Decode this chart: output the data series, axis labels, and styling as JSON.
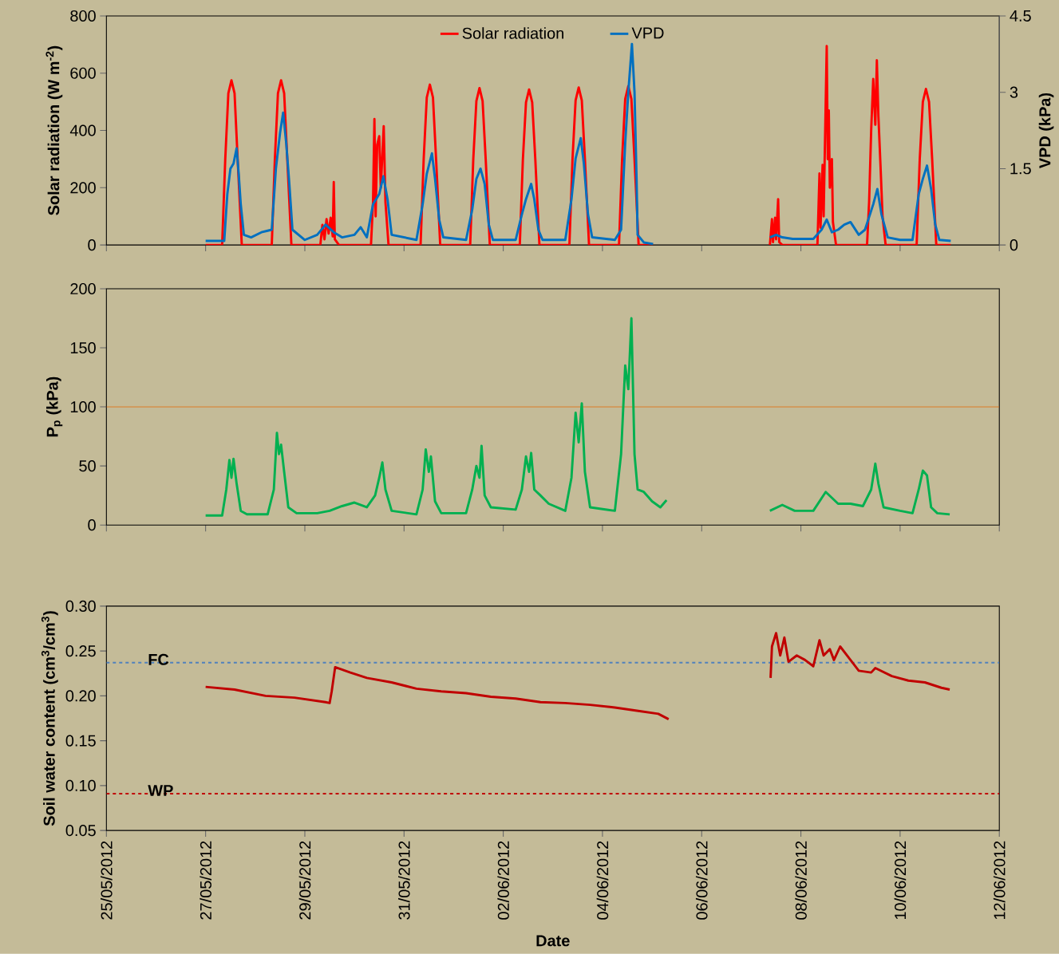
{
  "chart_data": [
    {
      "type": "line",
      "ylabel": "Solar radiation (W m$^{-2}$)",
      "y2label": "VPD (kPa)",
      "legend": "top",
      "tick_labels": "y",
      "xlim": [
        "2012-05-25",
        "2012-06-12"
      ],
      "xticks": [
        {
          "value": "2012-05-25",
          "label": null
        },
        {
          "value": "2012-05-27",
          "label": null
        },
        {
          "value": "2012-05-29",
          "label": null
        },
        {
          "value": "2012-05-31",
          "label": null
        },
        {
          "value": "2012-06-02",
          "label": null
        },
        {
          "value": "2012-06-04",
          "label": null
        },
        {
          "value": "2012-06-06",
          "label": null
        },
        {
          "value": "2012-06-08",
          "label": null
        },
        {
          "value": "2012-06-10",
          "label": null
        },
        {
          "value": "2012-06-12",
          "label": null
        }
      ],
      "ylim": [
        0,
        800
      ],
      "yticks": [
        0,
        200,
        400,
        600,
        800
      ],
      "y2lim": [
        0,
        4.5
      ],
      "y2ticks": [
        0,
        1.5,
        3,
        4.5
      ],
      "series": [
        {
          "name": "Solar radiation",
          "color": "#ff0000",
          "x": [
            "2012-05-27T00:00",
            "2012-05-27T08:00",
            "2012-05-27T09:30",
            "2012-05-27T11:00",
            "2012-05-27T12:30",
            "2012-05-27T14:00",
            "2012-05-27T15:30",
            "2012-05-27T17:30",
            "2012-05-28T08:00",
            "2012-05-28T09:30",
            "2012-05-28T11:00",
            "2012-05-28T12:30",
            "2012-05-28T14:00",
            "2012-05-28T15:30",
            "2012-05-28T17:30",
            "2012-05-29T07:30",
            "2012-05-29T08:30",
            "2012-05-29T09:30",
            "2012-05-29T10:30",
            "2012-05-29T11:30",
            "2012-05-29T12:30",
            "2012-05-29T13:30",
            "2012-05-29T14:00",
            "2012-05-29T14:30",
            "2012-05-29T16:30",
            "2012-05-30T08:00",
            "2012-05-30T09:00",
            "2012-05-30T09:40",
            "2012-05-30T10:15",
            "2012-05-30T11:00",
            "2012-05-30T12:00",
            "2012-05-30T12:45",
            "2012-05-30T14:10",
            "2012-05-30T15:00",
            "2012-05-30T16:30",
            "2012-05-31T08:00",
            "2012-05-31T09:30",
            "2012-05-31T11:00",
            "2012-05-31T12:30",
            "2012-05-31T14:00",
            "2012-05-31T15:30",
            "2012-05-31T17:30",
            "2012-06-01T08:00",
            "2012-06-01T09:30",
            "2012-06-01T11:00",
            "2012-06-01T12:30",
            "2012-06-01T14:00",
            "2012-06-01T15:30",
            "2012-06-01T17:30",
            "2012-06-02T08:00",
            "2012-06-02T09:30",
            "2012-06-02T11:00",
            "2012-06-02T12:30",
            "2012-06-02T14:00",
            "2012-06-02T15:30",
            "2012-06-02T17:30",
            "2012-06-03T08:00",
            "2012-06-03T09:30",
            "2012-06-03T11:00",
            "2012-06-03T12:30",
            "2012-06-03T14:00",
            "2012-06-03T15:30",
            "2012-06-03T17:30",
            "2012-06-04T08:00",
            "2012-06-04T09:30",
            "2012-06-04T11:00",
            "2012-06-04T12:30",
            "2012-06-04T14:00",
            "2012-06-04T15:30",
            "2012-06-04T17:30",
            "2012-06-05T00:30",
            "2012-06-06T00:00",
            "2012-06-07T09:00",
            "2012-06-07T10:00",
            "2012-06-07T10:30",
            "2012-06-07T11:30",
            "2012-06-07T12:00",
            "2012-06-07T13:00",
            "2012-06-07T13:30",
            "2012-06-07T15:00",
            "2012-06-08T08:00",
            "2012-06-08T09:00",
            "2012-06-08T09:30",
            "2012-06-08T10:30",
            "2012-06-08T11:00",
            "2012-06-08T12:30",
            "2012-06-08T13:00",
            "2012-06-08T13:30",
            "2012-06-08T14:00",
            "2012-06-08T15:00",
            "2012-06-08T15:30",
            "2012-06-08T17:00",
            "2012-06-09T08:00",
            "2012-06-09T09:00",
            "2012-06-09T10:00",
            "2012-06-09T11:00",
            "2012-06-09T12:00",
            "2012-06-09T12:45",
            "2012-06-09T13:30",
            "2012-06-09T14:30",
            "2012-06-09T15:30",
            "2012-06-09T17:00",
            "2012-06-10T08:00",
            "2012-06-10T09:30",
            "2012-06-10T11:00",
            "2012-06-10T12:30",
            "2012-06-10T14:00",
            "2012-06-10T15:30",
            "2012-06-10T17:30",
            "2012-06-11T00:30"
          ],
          "values": [
            0,
            0,
            300,
            530,
            575,
            530,
            300,
            0,
            0,
            300,
            530,
            575,
            530,
            300,
            0,
            0,
            70,
            20,
            90,
            40,
            95,
            30,
            220,
            20,
            0,
            0,
            150,
            440,
            100,
            350,
            380,
            200,
            415,
            150,
            0,
            0,
            300,
            515,
            560,
            515,
            300,
            0,
            0,
            300,
            503,
            548,
            503,
            300,
            0,
            0,
            300,
            498,
            543,
            498,
            300,
            0,
            0,
            300,
            505,
            550,
            505,
            300,
            0,
            0,
            300,
            510,
            555,
            510,
            300,
            0,
            0,
            null,
            0,
            90,
            10,
            95,
            20,
            160,
            10,
            0,
            0,
            250,
            60,
            280,
            100,
            695,
            300,
            470,
            200,
            300,
            80,
            0,
            0,
            150,
            400,
            580,
            420,
            645,
            450,
            280,
            100,
            0,
            0,
            300,
            500,
            545,
            500,
            300,
            0,
            0
          ]
        },
        {
          "name": "VPD",
          "color": "#0070c0",
          "axis": "y2",
          "x": [
            "2012-05-27T00:00",
            "2012-05-27T09:00",
            "2012-05-27T10:30",
            "2012-05-27T12:00",
            "2012-05-27T13:30",
            "2012-05-27T15:00",
            "2012-05-27T16:00",
            "2012-05-27T17:00",
            "2012-05-27T18:30",
            "2012-05-27T22:00",
            "2012-05-28T03:00",
            "2012-05-28T06:00",
            "2012-05-28T08:00",
            "2012-05-28T10:00",
            "2012-05-28T12:00",
            "2012-05-28T13:30",
            "2012-05-28T15:00",
            "2012-05-28T16:30",
            "2012-05-28T18:00",
            "2012-05-29T00:00",
            "2012-05-29T06:00",
            "2012-05-29T10:00",
            "2012-05-29T14:00",
            "2012-05-29T18:00",
            "2012-05-30T00:00",
            "2012-05-30T03:00",
            "2012-05-30T06:00",
            "2012-05-30T09:00",
            "2012-05-30T12:00",
            "2012-05-30T14:00",
            "2012-05-30T16:00",
            "2012-05-30T18:00",
            "2012-05-31T06:00",
            "2012-05-31T09:00",
            "2012-05-31T11:00",
            "2012-05-31T13:30",
            "2012-05-31T15:00",
            "2012-05-31T17:00",
            "2012-05-31T19:00",
            "2012-06-01T06:00",
            "2012-06-01T09:00",
            "2012-06-01T11:00",
            "2012-06-01T13:00",
            "2012-06-01T15:00",
            "2012-06-01T17:00",
            "2012-06-01T19:00",
            "2012-06-02T06:00",
            "2012-06-02T09:00",
            "2012-06-02T11:00",
            "2012-06-02T13:30",
            "2012-06-02T15:00",
            "2012-06-02T17:00",
            "2012-06-02T19:00",
            "2012-06-03T06:00",
            "2012-06-03T09:00",
            "2012-06-03T11:00",
            "2012-06-03T13:30",
            "2012-06-03T15:00",
            "2012-06-03T17:00",
            "2012-06-03T19:00",
            "2012-06-04T06:00",
            "2012-06-04T09:00",
            "2012-06-04T11:00",
            "2012-06-04T12:30",
            "2012-06-04T14:15",
            "2012-06-04T15:30",
            "2012-06-04T16:30",
            "2012-06-04T17:00",
            "2012-06-04T20:00",
            "2012-06-05T00:30",
            "2012-06-06T00:00",
            "2012-06-07T09:00",
            "2012-06-07T12:00",
            "2012-06-07T15:00",
            "2012-06-07T20:00",
            "2012-06-08T06:00",
            "2012-06-08T10:00",
            "2012-06-08T12:30",
            "2012-06-08T15:00",
            "2012-06-08T18:00",
            "2012-06-08T21:00",
            "2012-06-09T00:00",
            "2012-06-09T04:00",
            "2012-06-09T07:00",
            "2012-06-09T11:00",
            "2012-06-09T13:00",
            "2012-06-09T15:00",
            "2012-06-09T18:00",
            "2012-06-10T00:00",
            "2012-06-10T06:00",
            "2012-06-10T09:00",
            "2012-06-10T11:00",
            "2012-06-10T13:00",
            "2012-06-10T15:00",
            "2012-06-10T17:00",
            "2012-06-10T19:00",
            "2012-06-11T00:30"
          ],
          "values": [
            0.08,
            0.08,
            1.0,
            1.5,
            1.6,
            1.9,
            1.4,
            0.8,
            0.2,
            0.15,
            0.25,
            0.28,
            0.3,
            1.5,
            2.2,
            2.6,
            2.0,
            1.2,
            0.3,
            0.1,
            0.2,
            0.4,
            0.25,
            0.15,
            0.2,
            0.35,
            0.15,
            0.8,
            1.0,
            1.35,
            0.9,
            0.2,
            0.1,
            0.8,
            1.4,
            1.8,
            1.3,
            0.5,
            0.15,
            0.1,
            0.7,
            1.3,
            1.5,
            1.2,
            0.4,
            0.1,
            0.1,
            0.6,
            0.9,
            1.2,
            0.9,
            0.3,
            0.1,
            0.1,
            0.9,
            1.7,
            2.1,
            1.6,
            0.6,
            0.15,
            0.1,
            0.3,
            2.0,
            3.0,
            3.95,
            3.0,
            1.3,
            0.2,
            0.05,
            0.02,
            null,
            0.15,
            0.2,
            0.15,
            0.12,
            0.12,
            0.3,
            0.5,
            0.25,
            0.3,
            0.4,
            0.45,
            0.2,
            0.3,
            0.8,
            1.1,
            0.6,
            0.15,
            0.1,
            0.1,
            1.0,
            1.3,
            1.56,
            1.1,
            0.4,
            0.1,
            0.08
          ]
        }
      ]
    },
    {
      "type": "line",
      "ylabel": "P$_{p}$ (kPa)",
      "tick_labels": "y",
      "xlim": [
        "2012-05-25",
        "2012-06-12"
      ],
      "xticks": [
        {
          "value": "2012-05-25",
          "label": null
        },
        {
          "value": "2012-05-27",
          "label": null
        },
        {
          "value": "2012-05-29",
          "label": null
        },
        {
          "value": "2012-05-31",
          "label": null
        },
        {
          "value": "2012-06-02",
          "label": null
        },
        {
          "value": "2012-06-04",
          "label": null
        },
        {
          "value": "2012-06-06",
          "label": null
        },
        {
          "value": "2012-06-08",
          "label": null
        },
        {
          "value": "2012-06-10",
          "label": null
        },
        {
          "value": "2012-06-12",
          "label": null
        }
      ],
      "ylim": [
        0,
        200
      ],
      "yticks": [
        0,
        50,
        100,
        150,
        200
      ],
      "ref_lines": [
        {
          "axis": "y",
          "value": 100,
          "color": "#e46c0a"
        }
      ],
      "series": [
        {
          "color": "#00b050",
          "x": [
            "2012-05-27T00:00",
            "2012-05-27T08:00",
            "2012-05-27T10:00",
            "2012-05-27T11:30",
            "2012-05-27T12:30",
            "2012-05-27T13:30",
            "2012-05-27T15:00",
            "2012-05-27T17:00",
            "2012-05-27T20:00",
            "2012-05-28T06:00",
            "2012-05-28T09:00",
            "2012-05-28T10:30",
            "2012-05-28T11:30",
            "2012-05-28T12:30",
            "2012-05-28T14:00",
            "2012-05-28T16:00",
            "2012-05-28T20:00",
            "2012-05-29T06:00",
            "2012-05-29T12:00",
            "2012-05-29T18:00",
            "2012-05-30T00:00",
            "2012-05-30T06:00",
            "2012-05-30T10:00",
            "2012-05-30T12:00",
            "2012-05-30T13:30",
            "2012-05-30T15:00",
            "2012-05-30T18:00",
            "2012-05-31T06:00",
            "2012-05-31T09:00",
            "2012-05-31T10:30",
            "2012-05-31T12:00",
            "2012-05-31T13:00",
            "2012-05-31T15:00",
            "2012-05-31T18:00",
            "2012-06-01T06:00",
            "2012-06-01T09:00",
            "2012-06-01T11:00",
            "2012-06-01T12:30",
            "2012-06-01T13:30",
            "2012-06-01T15:00",
            "2012-06-01T18:00",
            "2012-06-02T06:00",
            "2012-06-02T09:00",
            "2012-06-02T11:00",
            "2012-06-02T12:30",
            "2012-06-02T13:30",
            "2012-06-02T15:00",
            "2012-06-02T18:00",
            "2012-06-02T22:00",
            "2012-06-03T06:00",
            "2012-06-03T09:00",
            "2012-06-03T11:00",
            "2012-06-03T12:30",
            "2012-06-03T14:00",
            "2012-06-03T15:30",
            "2012-06-03T18:00",
            "2012-06-04T06:00",
            "2012-06-04T09:00",
            "2012-06-04T11:00",
            "2012-06-04T12:30",
            "2012-06-04T14:00",
            "2012-06-04T15:30",
            "2012-06-04T17:00",
            "2012-06-04T20:00",
            "2012-06-05T00:00",
            "2012-06-05T04:00",
            "2012-06-05T07:00",
            "2012-06-06T00:00",
            "2012-06-07T09:00",
            "2012-06-07T15:00",
            "2012-06-07T21:00",
            "2012-06-08T06:00",
            "2012-06-08T12:00",
            "2012-06-08T18:00",
            "2012-06-09T00:00",
            "2012-06-09T06:00",
            "2012-06-09T10:00",
            "2012-06-09T12:00",
            "2012-06-09T13:30",
            "2012-06-09T16:00",
            "2012-06-10T00:00",
            "2012-06-10T06:00",
            "2012-06-10T09:00",
            "2012-06-10T11:00",
            "2012-06-10T13:00",
            "2012-06-10T15:00",
            "2012-06-10T18:00",
            "2012-06-11T00:00"
          ],
          "values": [
            8,
            8,
            30,
            55,
            40,
            56,
            35,
            12,
            9,
            9,
            30,
            78,
            60,
            68,
            45,
            15,
            10,
            10,
            12,
            16,
            19,
            15,
            25,
            40,
            53,
            30,
            12,
            9,
            30,
            64,
            45,
            58,
            20,
            10,
            10,
            30,
            50,
            40,
            67,
            25,
            15,
            13,
            30,
            58,
            45,
            61,
            30,
            25,
            18,
            12,
            40,
            95,
            70,
            103,
            45,
            15,
            12,
            60,
            135,
            115,
            175,
            60,
            30,
            28,
            20,
            15,
            21,
            null,
            12,
            17,
            12,
            12,
            28,
            18,
            18,
            16,
            30,
            52,
            35,
            15,
            12,
            10,
            30,
            46,
            42,
            15,
            10,
            9
          ]
        }
      ]
    },
    {
      "type": "line",
      "ylabel": "Soil water content (cm$^{3}$/cm$^{3}$)",
      "xlabel": "Date",
      "xlim": [
        "2012-05-25",
        "2012-06-12"
      ],
      "xticks": [
        {
          "value": "2012-05-25",
          "label": "25/05/2012"
        },
        {
          "value": "2012-05-27",
          "label": "27/05/2012"
        },
        {
          "value": "2012-05-29",
          "label": "29/05/2012"
        },
        {
          "value": "2012-05-31",
          "label": "31/05/2012"
        },
        {
          "value": "2012-06-02",
          "label": "02/06/2012"
        },
        {
          "value": "2012-06-04",
          "label": "04/06/2012"
        },
        {
          "value": "2012-06-06",
          "label": "06/06/2012"
        },
        {
          "value": "2012-06-08",
          "label": "08/06/2012"
        },
        {
          "value": "2012-06-10",
          "label": "10/06/2012"
        },
        {
          "value": "2012-06-12",
          "label": "12/06/2012"
        }
      ],
      "ylim": [
        0.05,
        0.3
      ],
      "yticks": [
        {
          "value": 0.05,
          "label": "0.05"
        },
        {
          "value": 0.1,
          "label": "0.10"
        },
        {
          "value": 0.15,
          "label": "0.15"
        },
        {
          "value": 0.2,
          "label": "0.20"
        },
        {
          "value": 0.25,
          "label": "0.25"
        },
        {
          "value": 0.3,
          "label": "0.30"
        }
      ],
      "ref_lines": [
        {
          "axis": "y",
          "value": 0.237,
          "label": "FC",
          "color": "#4f81bd",
          "line_style": "dashed"
        },
        {
          "axis": "y",
          "value": 0.091,
          "label": "WP",
          "color": "#c00000",
          "line_style": "dashed"
        }
      ],
      "series": [
        {
          "color": "#c00000",
          "x": [
            "2012-05-27T00:00",
            "2012-05-27T14:00",
            "2012-05-28T05:00",
            "2012-05-28T19:00",
            "2012-05-29T10:00",
            "2012-05-29T12:00",
            "2012-05-29T13:00",
            "2012-05-29T14:40",
            "2012-05-29T22:00",
            "2012-05-30T06:00",
            "2012-05-30T18:00",
            "2012-05-31T06:00",
            "2012-05-31T18:00",
            "2012-06-01T06:00",
            "2012-06-01T18:00",
            "2012-06-02T06:00",
            "2012-06-02T18:00",
            "2012-06-03T06:00",
            "2012-06-03T18:00",
            "2012-06-04T06:00",
            "2012-06-04T18:00",
            "2012-06-05T03:00",
            "2012-06-05T08:00",
            "2012-06-06T00:00",
            "2012-06-07T09:20",
            "2012-06-07T10:00",
            "2012-06-07T12:00",
            "2012-06-07T14:00",
            "2012-06-07T16:00",
            "2012-06-07T18:00",
            "2012-06-07T22:00",
            "2012-06-08T02:00",
            "2012-06-08T06:00",
            "2012-06-08T09:00",
            "2012-06-08T11:00",
            "2012-06-08T14:00",
            "2012-06-08T16:00",
            "2012-06-08T19:00",
            "2012-06-09T00:00",
            "2012-06-09T04:00",
            "2012-06-09T10:00",
            "2012-06-09T12:00",
            "2012-06-09T20:00",
            "2012-06-10T04:00",
            "2012-06-10T12:00",
            "2012-06-10T20:00",
            "2012-06-11T00:00"
          ],
          "values": [
            0.21,
            0.207,
            0.2,
            0.198,
            0.193,
            0.192,
            0.205,
            0.232,
            0.226,
            0.22,
            0.215,
            0.208,
            0.205,
            0.203,
            0.199,
            0.197,
            0.193,
            0.192,
            0.19,
            0.187,
            0.183,
            0.18,
            0.174,
            null,
            0.22,
            0.255,
            0.27,
            0.245,
            0.265,
            0.238,
            0.245,
            0.24,
            0.233,
            0.262,
            0.245,
            0.252,
            0.24,
            0.255,
            0.24,
            0.228,
            0.226,
            0.231,
            0.222,
            0.217,
            0.215,
            0.209,
            0.207
          ]
        }
      ]
    }
  ]
}
